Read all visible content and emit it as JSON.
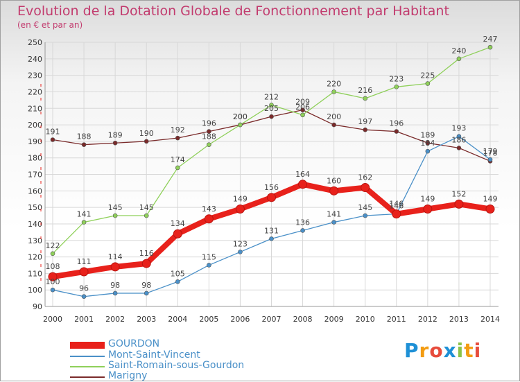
{
  "header": {
    "title": "Evolution de la Dotation Globale de Fonctionnement par Habitant",
    "subtitle": "(en € et par an)"
  },
  "logo": {
    "text": "Proxiti",
    "letters": [
      "P",
      "r",
      "o",
      "x",
      "i",
      "t",
      "i"
    ],
    "colors": [
      "#1e90d6",
      "#f39c12",
      "#e74c3c",
      "#1e90d6",
      "#8bc34a",
      "#f39c12",
      "#e74c3c"
    ]
  },
  "chart_data": {
    "type": "line",
    "title": "Evolution de la Dotation Globale de Fonctionnement par Habitant",
    "subtitle": "(en € et par an)",
    "x": [
      2000,
      2001,
      2002,
      2003,
      2004,
      2005,
      2006,
      2007,
      2008,
      2009,
      2010,
      2011,
      2012,
      2013,
      2014
    ],
    "ylim": [
      90,
      250
    ],
    "yticks": [
      90,
      100,
      110,
      120,
      130,
      140,
      150,
      160,
      170,
      180,
      190,
      200,
      210,
      220,
      230,
      240,
      250
    ],
    "grid": true,
    "legend_position": "bottom-left",
    "series": [
      {
        "name": "GOURDON",
        "color": "#e8211b",
        "emphasis": true,
        "values": [
          108,
          111,
          114,
          116,
          134,
          143,
          149,
          156,
          164,
          160,
          162,
          146,
          149,
          152,
          149
        ]
      },
      {
        "name": "Mont-Saint-Vincent",
        "color": "#4a90c8",
        "values": [
          100,
          96,
          98,
          98,
          105,
          115,
          123,
          131,
          136,
          141,
          145,
          146,
          184,
          193,
          179
        ]
      },
      {
        "name": "Saint-Romain-sous-Gourdon",
        "color": "#8fd05a",
        "values": [
          122,
          141,
          145,
          145,
          174,
          188,
          200,
          212,
          206,
          220,
          216,
          223,
          225,
          240,
          247
        ]
      },
      {
        "name": "Marigny",
        "color": "#7a2a2a",
        "values": [
          191,
          188,
          189,
          190,
          192,
          196,
          200,
          205,
          209,
          200,
          197,
          196,
          189,
          186,
          178
        ]
      }
    ]
  }
}
